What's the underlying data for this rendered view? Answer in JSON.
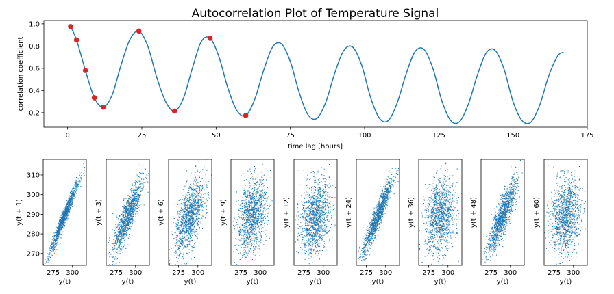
{
  "chart_data": [
    {
      "type": "line",
      "title": "Autocorrelation Plot of Temperature Signal",
      "xlabel": "time lag [hours]",
      "ylabel": "correlation coefficient",
      "xlim": [
        -8,
        175
      ],
      "ylim": [
        0.07,
        1.03
      ],
      "xticks": [
        0,
        25,
        50,
        75,
        100,
        125,
        150,
        175
      ],
      "yticks": [
        0.2,
        0.4,
        0.6,
        0.8,
        1.0
      ],
      "grid": false,
      "line_color": "#1f77b4",
      "marker_color": "#d62728",
      "series": [
        {
          "x": [
            1,
            3,
            6,
            9,
            12,
            15,
            18,
            21,
            24,
            27,
            30,
            33,
            36,
            39,
            42,
            45,
            48,
            51,
            54,
            57,
            60,
            63,
            66,
            69,
            72,
            75,
            78,
            81,
            84,
            87,
            90,
            93,
            96,
            99,
            102,
            105,
            108,
            111,
            114,
            117,
            120,
            123,
            126,
            129,
            132,
            135,
            138,
            141,
            144,
            147,
            150,
            153,
            156,
            159,
            162,
            165,
            167
          ],
          "y": [
            0.975,
            0.855,
            0.58,
            0.335,
            0.25,
            0.36,
            0.63,
            0.86,
            0.935,
            0.8,
            0.52,
            0.3,
            0.215,
            0.33,
            0.6,
            0.84,
            0.87,
            0.7,
            0.42,
            0.22,
            0.175,
            0.32,
            0.58,
            0.79,
            0.82,
            0.66,
            0.38,
            0.18,
            0.15,
            0.3,
            0.56,
            0.76,
            0.79,
            0.63,
            0.34,
            0.15,
            0.13,
            0.29,
            0.55,
            0.75,
            0.77,
            0.6,
            0.31,
            0.13,
            0.12,
            0.28,
            0.54,
            0.74,
            0.76,
            0.59,
            0.3,
            0.13,
            0.115,
            0.27,
            0.53,
            0.71,
            0.745
          ]
        }
      ],
      "markers": {
        "x": [
          1,
          3,
          6,
          9,
          12,
          24,
          36,
          48,
          60
        ],
        "y": [
          0.975,
          0.855,
          0.58,
          0.335,
          0.25,
          0.935,
          0.215,
          0.87,
          0.175
        ]
      }
    },
    {
      "type": "scatter",
      "xlabel": "y(t)",
      "color": "#1f77b4",
      "xlim": [
        262,
        318
      ],
      "ylim": [
        264,
        318
      ],
      "xticks": [
        275,
        300
      ],
      "yticks": [
        270,
        280,
        290,
        300,
        310
      ],
      "panels": [
        {
          "lag": 1,
          "ylabel": "y(t + 1)",
          "correlation": 0.975
        },
        {
          "lag": 3,
          "ylabel": "y(t + 3)",
          "correlation": 0.855
        },
        {
          "lag": 6,
          "ylabel": "y(t + 6)",
          "correlation": 0.58
        },
        {
          "lag": 9,
          "ylabel": "y(t + 9)",
          "correlation": 0.335
        },
        {
          "lag": 12,
          "ylabel": "y(t + 12)",
          "correlation": 0.25
        },
        {
          "lag": 24,
          "ylabel": "y(t + 24)",
          "correlation": 0.935
        },
        {
          "lag": 36,
          "ylabel": "y(t + 36)",
          "correlation": 0.215
        },
        {
          "lag": 48,
          "ylabel": "y(t + 48)",
          "correlation": 0.87
        },
        {
          "lag": 60,
          "ylabel": "y(t + 60)",
          "correlation": 0.175
        }
      ]
    }
  ]
}
